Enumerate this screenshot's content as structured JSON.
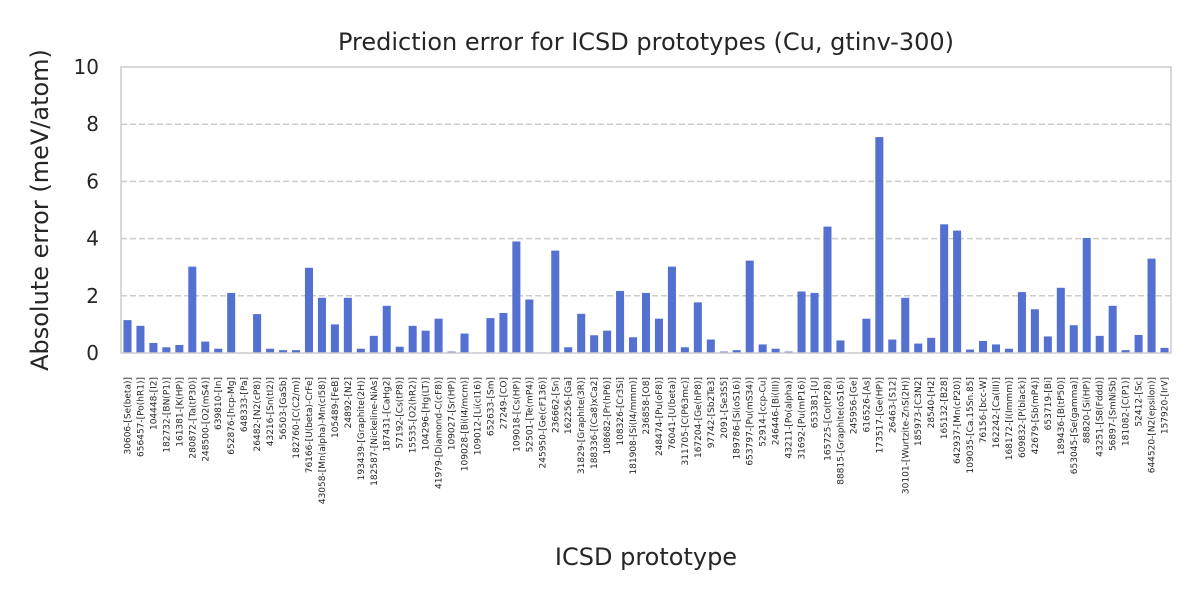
{
  "chart_data": {
    "type": "bar",
    "title": "Prediction error for ICSD prototypes (Cu, gtinv-300)",
    "xlabel": "ICSD prototype",
    "ylabel": "Absolute error (meV/atom)",
    "ylim": [
      0,
      10
    ],
    "yticks": [
      "0",
      "2",
      "4",
      "6",
      "8",
      "10"
    ],
    "grid": "y-dashed",
    "bar_color": "#5470d0",
    "categories": [
      "30606-[Se(beta)]",
      "656457-[Po(hR1)]",
      "104448-[I2]",
      "182732-[BN(P1)]",
      "161381-[K(HP)]",
      "280872-[Ta(tP30)]",
      "248500-[O2(mS4)]",
      "639810-[In]",
      "652876-[hcp-Mg]",
      "648333-[Pa]",
      "26482-[N2(cP8)]",
      "43216-[Sn(tI2)]",
      "56503-[GaSb]",
      "182760-[C(C2/m)]",
      "76166-[U(beta)-CrFe]",
      "43058-[Mn(alpha)-Mn(cI58)]",
      "105489-[FeB]",
      "24892-[N2]",
      "193439-[Graphite(2H)]",
      "182587-[Nickeline-NiAs]",
      "187431-[CaHg2]",
      "57192-[Cs(tP8)]",
      "15535-[O2(hR2)]",
      "104296-[Hg(LT)]",
      "41979-[Diamond-C(cF8)]",
      "109027-[Sr(HP)]",
      "109028-[Bi(I4/mcm)]",
      "109012-[Li(cI16)]",
      "652633-[Sm]",
      "27249-[CO]",
      "109018-[Cs(HP)]",
      "52501-[Te(mP4)]",
      "245950-[Ge(cF136)]",
      "236662-[Sn]",
      "162256-[Ga]",
      "31829-[Graphite(3R)]",
      "188336-[(Ca8)xCa2]",
      "108682-[Pr(hP6)]",
      "108326-[Cr3Si]",
      "181908-[Si(I4/mmm)]",
      "236858-[O8]",
      "248474-[Pu(oF8)]",
      "76041-[U(beta)]",
      "311705-[C(P63mc)]",
      "167204-[Ge(hP8)]",
      "97742-[Sb2Te3]",
      "2091-[Se3S5]",
      "189786-[Si(oS16)]",
      "653797-[Pu(mS34)]",
      "52914-[ccp-Cu]",
      "246446-[Bi(III)]",
      "43211-[Po(alpha)]",
      "31692-[Pu(mP16)]",
      "653381-[U]",
      "165725-[Co(tP28)]",
      "88815-[Graphite(oS16)]",
      "245956-[Ge]",
      "616526-[As]",
      "173517-[Ge(HP)]",
      "26463-[S12]",
      "30101-[Wurtzite-ZnS(2H)]",
      "185973-[C3N2]",
      "28540-[H2]",
      "165132-[B28]",
      "642937-[Mn(cP20)]",
      "109035-[Ca.15Sn.85]",
      "76156-[bcc-W]",
      "162242-[Ca(III)]",
      "168172-[I(Immm)]",
      "609832-[P(black)]",
      "42679-[Sb(mP4)]",
      "653719-[Bi]",
      "189436-[B(tP50)]",
      "653045-[Se(gamma)]",
      "88820-[Si(HP)]",
      "43251-[S8(Fddd)]",
      "56897-[SmNiSb]",
      "181082-[C(P1)]",
      "52412-[Sc]",
      "644520-[N2(epsilon)]",
      "157920-[IrV]"
    ],
    "values": [
      1.15,
      0.95,
      0.35,
      0.2,
      0.28,
      3.02,
      0.4,
      0.15,
      2.1,
      0.02,
      1.36,
      0.15,
      0.1,
      0.1,
      2.98,
      1.93,
      1.0,
      1.93,
      0.15,
      0.6,
      1.65,
      0.22,
      0.95,
      0.78,
      1.2,
      0.05,
      0.68,
      0.02,
      1.22,
      1.4,
      3.9,
      1.87,
      0.02,
      3.58,
      0.2,
      1.37,
      0.62,
      0.78,
      2.17,
      0.55,
      2.1,
      1.2,
      3.02,
      0.2,
      1.77,
      0.47,
      0.05,
      0.1,
      3.23,
      0.3,
      0.15,
      0.05,
      2.15,
      2.1,
      4.42,
      0.44,
      0.02,
      1.2,
      7.55,
      0.47,
      1.93,
      0.33,
      0.53,
      4.5,
      4.28,
      0.12,
      0.42,
      0.3,
      0.15,
      2.13,
      1.53,
      0.58,
      2.28,
      0.97,
      4.02,
      0.6,
      1.65,
      0.1,
      0.63,
      3.3,
      0.18
    ]
  }
}
